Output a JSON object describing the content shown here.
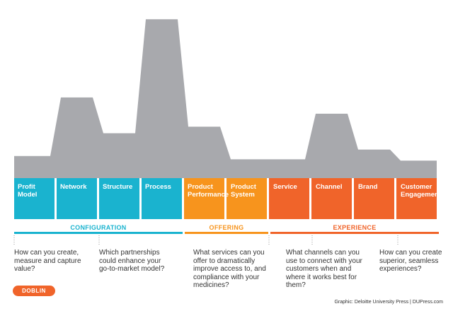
{
  "chart_data": {
    "type": "area",
    "title": "",
    "xlabel": "",
    "ylabel": "",
    "grid": false,
    "categories": [
      "Profit Model",
      "Network",
      "Structure",
      "Process",
      "Product Performance",
      "Product System",
      "Service",
      "Channel",
      "Brand",
      "Customer Engagement"
    ],
    "values": [
      1,
      10,
      4.5,
      22,
      5.5,
      0.5,
      0.5,
      7.5,
      2,
      0.3
    ],
    "ylim": [
      0,
      23
    ],
    "area_color": "#a8a9ad",
    "category_colors": [
      "#1ab3cf",
      "#1ab3cf",
      "#1ab3cf",
      "#1ab3cf",
      "#f7941d",
      "#f7941d",
      "#f0642a",
      "#f0642a",
      "#f0642a",
      "#f0642a"
    ],
    "groups": [
      {
        "name": "CONFIGURATION",
        "color": "#1ab3cf",
        "question": "How can you create, measure and capture value?",
        "question2": "Which partnerships could enhance your go-to-market model?"
      },
      {
        "name": "OFFERING",
        "color": "#f7941d",
        "question": "What services can you offer to dramatically improve access to, and compliance with your medicines?"
      },
      {
        "name": "EXPERIENCE",
        "color": "#f0642a",
        "question": "What channels can you use to connect with your customers when and where it works best for them?",
        "question2": "How can you create superior, seamless experiences?"
      }
    ]
  },
  "labels": {
    "box": [
      "Profit\nModel",
      "Network",
      "Structure",
      "Process",
      "Product\nPerformance",
      "Product\nSystem",
      "Service",
      "Channel",
      "Brand",
      "Customer\nEngagement"
    ],
    "group_configuration": "CONFIGURATION",
    "group_offering": "OFFERING",
    "group_experience": "EXPERIENCE",
    "q1": "How can you create, measure and capture value?",
    "q2": "Which partnerships could enhance your go-to-market model?",
    "q3": "What services can you offer to dramatically improve access to, and compliance with your medicines?",
    "q4": "What channels can you use to connect with your customers when and where it works best for them?",
    "q5": "How can you create superior, seamless experiences?"
  },
  "logo": {
    "text": "DOBLIN",
    "color": "#f0642a"
  },
  "credit": "Graphic: Deloitte University Press  |  DUPress.com"
}
